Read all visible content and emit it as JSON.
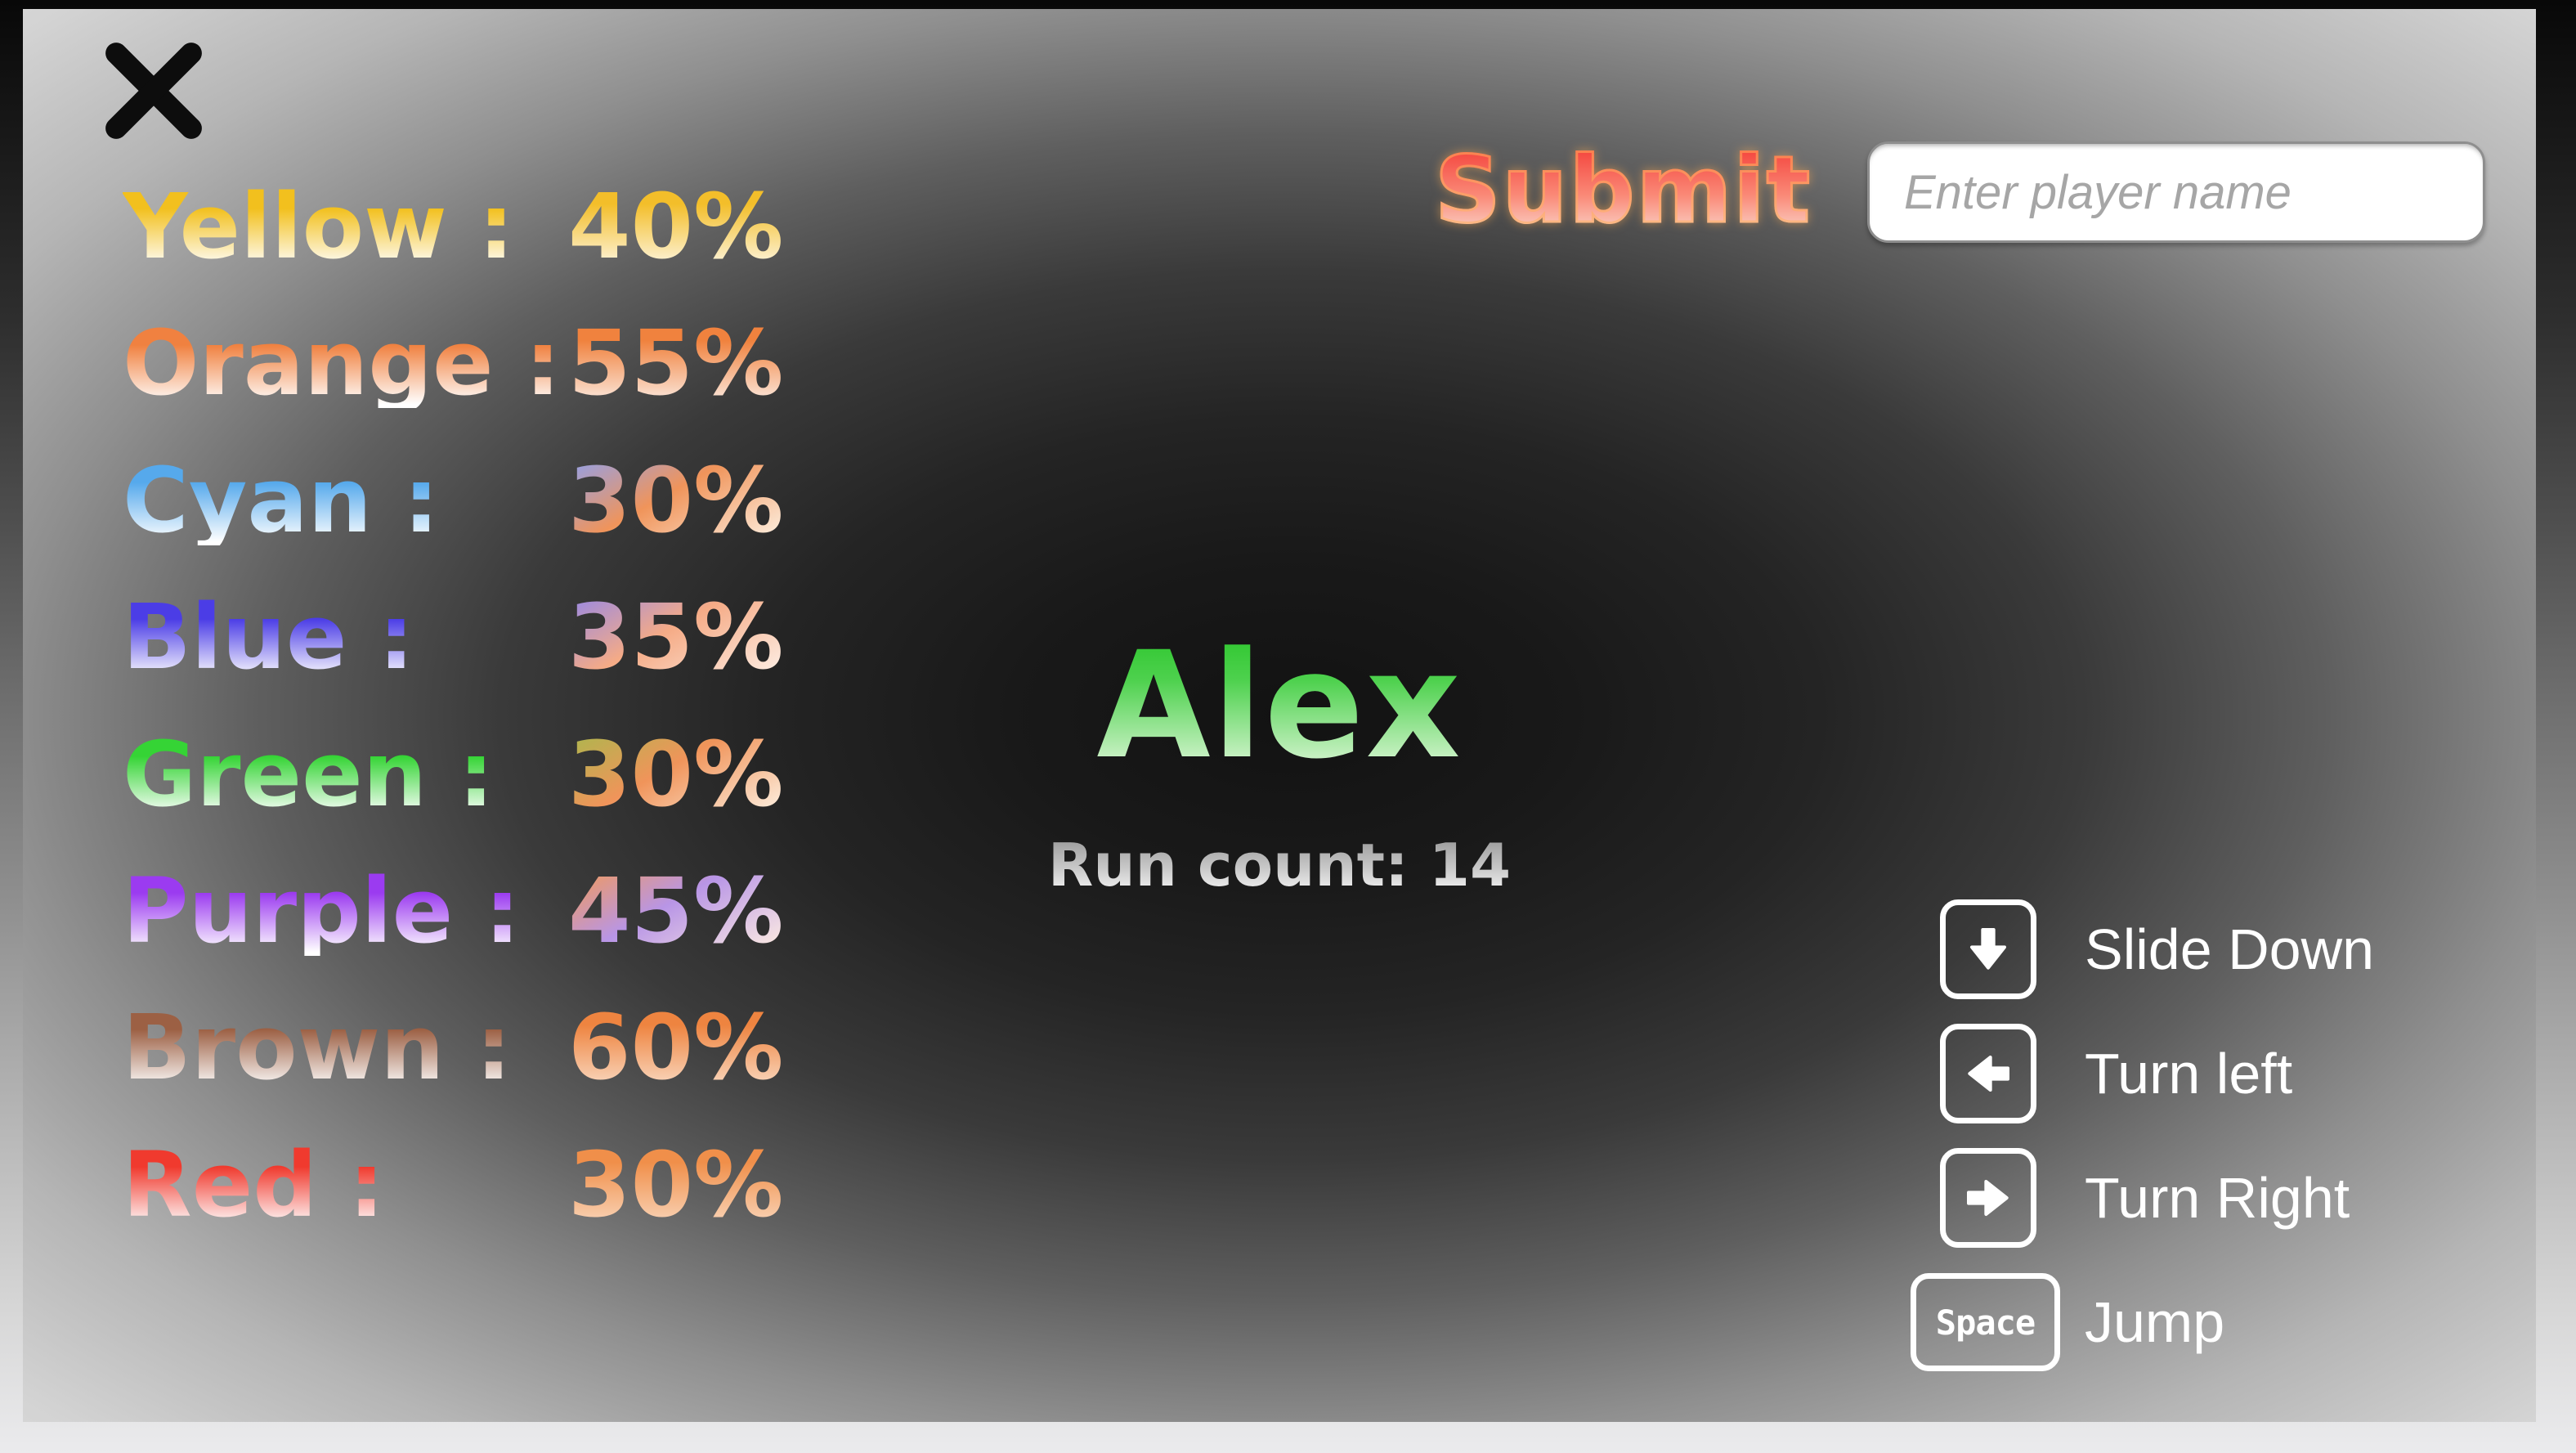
{
  "window": {
    "close_icon": "close-x",
    "close_color": "#0d0d0d"
  },
  "stats": {
    "separator": ":",
    "rows": [
      {
        "name": "Yellow",
        "value": "40%",
        "name_color": "#f2c01e",
        "value_gradient": [
          "#f3be2a",
          "#fdf3d8"
        ]
      },
      {
        "name": "Orange",
        "value": "55%",
        "name_color": "#f08140",
        "value_gradient": [
          "#f0823e",
          "#fbe6da"
        ]
      },
      {
        "name": "Cyan",
        "value": "30%",
        "name_color": "#56a9ec",
        "value_gradient": [
          "#97a0e2",
          "#f0945a",
          "#fdeede"
        ]
      },
      {
        "name": "Blue",
        "value": "35%",
        "name_color": "#4b3de6",
        "value_gradient": [
          "#9c8ae0",
          "#f5ab86",
          "#fdeee4"
        ]
      },
      {
        "name": "Green",
        "value": "30%",
        "name_color": "#35d435",
        "value_gradient": [
          "#b0b54e",
          "#f0945a",
          "#fdeede"
        ]
      },
      {
        "name": "Purple",
        "value": "45%",
        "name_color": "#9b3bf0",
        "value_gradient": [
          "#f09a5e",
          "#b895e6",
          "#fcebe2"
        ]
      },
      {
        "name": "Brown",
        "value": "60%",
        "name_color": "#9c6044",
        "value_gradient": [
          "#ee8440",
          "#f9d6bc"
        ]
      },
      {
        "name": "Red",
        "value": "30%",
        "name_color": "#f03a2e",
        "value_gradient": [
          "#f08f4a",
          "#f9d2b4"
        ]
      }
    ]
  },
  "submit": {
    "label": "Submit",
    "gradient": [
      "#f4413a",
      "#fa8a78",
      "#fbe3da"
    ],
    "glow": "#ffb055"
  },
  "player_input": {
    "placeholder": "Enter player name",
    "value": ""
  },
  "player": {
    "name": "Alex",
    "name_gradient": [
      "#25c325",
      "#eefbe8"
    ],
    "run_count_label": "Run count:",
    "run_count_value": "14"
  },
  "controls": [
    {
      "key": "down-arrow",
      "label": "Slide Down"
    },
    {
      "key": "left-arrow",
      "label": "Turn left"
    },
    {
      "key": "right-arrow",
      "label": "Turn Right"
    },
    {
      "key": "space",
      "key_label": "Space",
      "label": "Jump"
    }
  ]
}
